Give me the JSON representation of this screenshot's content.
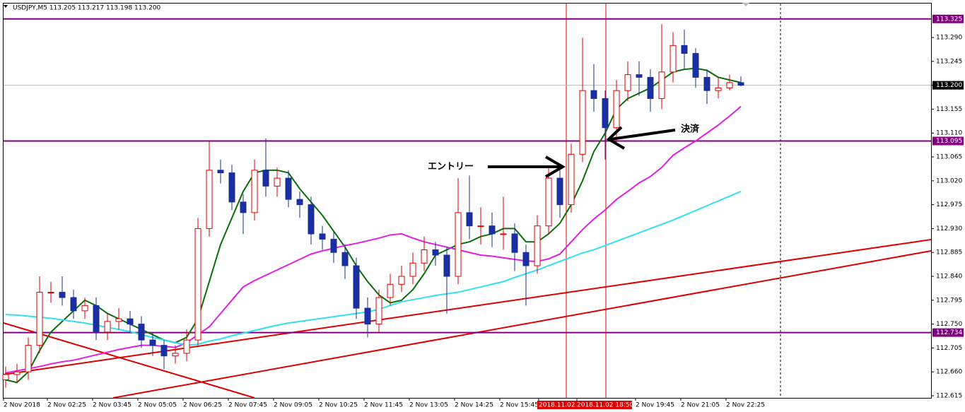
{
  "chart_data": {
    "type": "candlestick",
    "title": "USDJPY,M5  113.205 113.217 113.198 113.200",
    "up_color": "#e00000",
    "down_color": "#1a2fa0",
    "ylim": [
      112.611,
      113.354
    ],
    "yticks": [
      {
        "value": 112.615,
        "label": "112.615"
      },
      {
        "value": 112.66,
        "label": "112.660"
      },
      {
        "value": 112.705,
        "label": "112.705"
      },
      {
        "value": 112.75,
        "label": "112.750"
      },
      {
        "value": 112.795,
        "label": "112.795"
      },
      {
        "value": 112.84,
        "label": "112.840"
      },
      {
        "value": 112.885,
        "label": "112.885"
      },
      {
        "value": 112.93,
        "label": "112.930"
      },
      {
        "value": 112.975,
        "label": "112.975"
      },
      {
        "value": 113.02,
        "label": "113.020"
      },
      {
        "value": 113.065,
        "label": "113.065"
      },
      {
        "value": 113.11,
        "label": "113.110"
      },
      {
        "value": 113.155,
        "label": "113.155"
      },
      {
        "value": 113.2,
        "label": "113.200"
      },
      {
        "value": 113.245,
        "label": "113.245"
      },
      {
        "value": 113.29,
        "label": "113.290"
      }
    ],
    "levels": [
      {
        "value": 113.325,
        "label": "113.325"
      },
      {
        "value": 113.095,
        "label": "113.095"
      },
      {
        "value": 112.734,
        "label": "112.734"
      }
    ],
    "bid": {
      "value": 113.2,
      "label": "113.200"
    },
    "x_labels": [
      "2 Nov 2018",
      "2 Nov 02:25",
      "2 Nov 03:45",
      "2 Nov 05:05",
      "2 Nov 06:25",
      "2 Nov 07:45",
      "2 Nov 09:05",
      "2 Nov 10:25",
      "2 Nov 11:45",
      "2 Nov 13:05",
      "2 Nov 14:25",
      "2 Nov 15:45",
      "2018.11.02 1",
      "2018.11.02 18:50",
      "2 Nov 19:45",
      "2 Nov 21:05",
      "2 Nov 22:25"
    ],
    "annotations": [
      "エントリー",
      "決済"
    ],
    "open": [
      112.645,
      112.655,
      112.66,
      112.71,
      112.81,
      112.81,
      112.8,
      112.775,
      112.785,
      112.735,
      112.755,
      112.76,
      112.75,
      112.72,
      112.71,
      112.69,
      112.695,
      112.72,
      112.93,
      113.04,
      113.035,
      112.98,
      112.96,
      113.04,
      113.01,
      113.025,
      112.985,
      112.975,
      112.92,
      112.91,
      112.885,
      112.86,
      112.78,
      112.75,
      112.8,
      112.825,
      112.84,
      112.865,
      112.89,
      112.88,
      112.84,
      112.96,
      112.935,
      112.935,
      112.92,
      112.92,
      112.885,
      112.86,
      112.935,
      113.025,
      112.975,
      113.07,
      113.19,
      113.175,
      113.12,
      113.19,
      113.22,
      113.215,
      113.175,
      113.225,
      113.275,
      113.26,
      113.215,
      113.19,
      113.195,
      113.205
    ],
    "high": [
      112.67,
      112.675,
      112.725,
      112.84,
      112.83,
      112.84,
      112.815,
      112.8,
      112.8,
      112.77,
      112.78,
      112.775,
      112.765,
      112.735,
      112.72,
      112.71,
      112.74,
      112.95,
      113.095,
      113.06,
      113.05,
      112.995,
      113.06,
      113.1,
      113.045,
      113.04,
      113.0,
      112.99,
      112.935,
      112.925,
      112.9,
      112.875,
      112.8,
      112.815,
      112.845,
      112.86,
      112.885,
      112.915,
      112.905,
      112.895,
      113.025,
      113.03,
      112.97,
      112.96,
      112.99,
      112.94,
      112.9,
      112.955,
      113.045,
      113.04,
      113.09,
      113.29,
      113.24,
      113.19,
      113.21,
      113.245,
      113.245,
      113.23,
      113.315,
      113.3,
      113.305,
      113.27,
      113.23,
      113.215,
      113.22,
      113.217
    ],
    "low": [
      112.63,
      112.64,
      112.645,
      112.695,
      112.79,
      112.785,
      112.76,
      112.76,
      112.72,
      112.72,
      112.74,
      112.735,
      112.705,
      112.69,
      112.665,
      112.675,
      112.68,
      112.71,
      112.915,
      113.015,
      112.965,
      112.92,
      112.945,
      112.99,
      112.99,
      112.97,
      112.95,
      112.9,
      112.89,
      112.865,
      112.835,
      112.76,
      112.725,
      112.735,
      112.785,
      112.81,
      112.825,
      112.85,
      112.86,
      112.77,
      112.825,
      112.91,
      112.9,
      112.895,
      112.89,
      112.85,
      112.785,
      112.845,
      112.92,
      112.95,
      112.96,
      113.055,
      113.15,
      113.06,
      113.09,
      113.17,
      113.18,
      113.15,
      113.155,
      113.205,
      113.23,
      113.195,
      113.165,
      113.175,
      113.19,
      113.198
    ],
    "close": [
      112.655,
      112.66,
      112.71,
      112.81,
      112.81,
      112.8,
      112.775,
      112.785,
      112.735,
      112.755,
      112.76,
      112.75,
      112.72,
      112.71,
      112.69,
      112.695,
      112.72,
      112.93,
      113.04,
      113.035,
      112.98,
      112.96,
      113.04,
      113.01,
      113.025,
      112.985,
      112.975,
      112.92,
      112.91,
      112.885,
      112.86,
      112.78,
      112.75,
      112.8,
      112.825,
      112.84,
      112.865,
      112.89,
      112.88,
      112.84,
      112.96,
      112.935,
      112.935,
      112.92,
      112.92,
      112.885,
      112.86,
      112.935,
      113.025,
      112.975,
      113.07,
      113.19,
      113.175,
      113.12,
      113.19,
      113.22,
      113.215,
      113.175,
      113.225,
      113.275,
      113.26,
      113.215,
      113.19,
      113.195,
      113.205,
      113.2
    ],
    "series": [
      {
        "color": "#0a6e0a",
        "values": [
          112.645,
          112.64,
          112.66,
          112.7,
          112.735,
          112.755,
          112.775,
          112.795,
          112.785,
          112.77,
          112.76,
          112.75,
          112.74,
          112.73,
          112.72,
          112.715,
          112.725,
          112.76,
          112.83,
          112.9,
          112.95,
          113.0,
          113.035,
          113.04,
          113.04,
          113.035,
          113.005,
          112.98,
          112.955,
          112.925,
          112.895,
          112.86,
          112.83,
          112.805,
          112.79,
          112.795,
          112.815,
          112.845,
          112.88,
          112.89,
          112.9,
          112.905,
          112.915,
          112.92,
          112.93,
          112.93,
          112.905,
          112.905,
          112.92,
          112.94,
          112.975,
          113.02,
          113.075,
          113.11,
          113.155,
          113.175,
          113.185,
          113.195,
          113.21,
          113.225,
          113.23,
          113.232,
          113.228,
          113.215,
          113.21,
          113.205
        ]
      },
      {
        "color": "#e020e0",
        "values": [
          112.658,
          112.662,
          112.666,
          112.67,
          112.675,
          112.679,
          112.682,
          112.687,
          112.692,
          112.697,
          112.702,
          112.706,
          112.71,
          112.71,
          112.708,
          112.706,
          112.715,
          112.73,
          112.745,
          112.77,
          112.795,
          112.82,
          112.832,
          112.842,
          112.852,
          112.862,
          112.872,
          112.882,
          112.888,
          112.893,
          112.898,
          112.902,
          112.907,
          112.912,
          112.918,
          112.92,
          112.912,
          112.905,
          112.9,
          112.895,
          112.89,
          112.885,
          112.88,
          112.878,
          112.875,
          112.872,
          112.869,
          112.868,
          112.873,
          112.882,
          112.905,
          112.928,
          112.948,
          112.965,
          112.985,
          113.0,
          113.016,
          113.028,
          113.045,
          113.068,
          113.082,
          113.095,
          113.11,
          113.125,
          113.142,
          113.16
        ]
      },
      {
        "color": "#30e0f0",
        "values": [
          112.768,
          112.767,
          112.765,
          112.763,
          112.761,
          112.758,
          112.755,
          112.752,
          112.748,
          112.744,
          112.74,
          112.736,
          112.73,
          112.725,
          112.72,
          112.715,
          112.71,
          112.712,
          112.718,
          112.722,
          112.728,
          112.733,
          112.738,
          112.743,
          112.748,
          112.752,
          112.755,
          112.758,
          112.761,
          112.764,
          112.767,
          112.77,
          112.773,
          112.778,
          112.785,
          112.792,
          112.796,
          112.8,
          112.804,
          112.807,
          112.81,
          112.815,
          112.82,
          112.825,
          112.83,
          112.838,
          112.845,
          112.852,
          112.86,
          112.868,
          112.876,
          112.884,
          112.89,
          112.898,
          112.906,
          112.914,
          112.922,
          112.93,
          112.938,
          112.946,
          112.955,
          112.964,
          112.973,
          112.982,
          112.991,
          113.0
        ]
      }
    ]
  }
}
